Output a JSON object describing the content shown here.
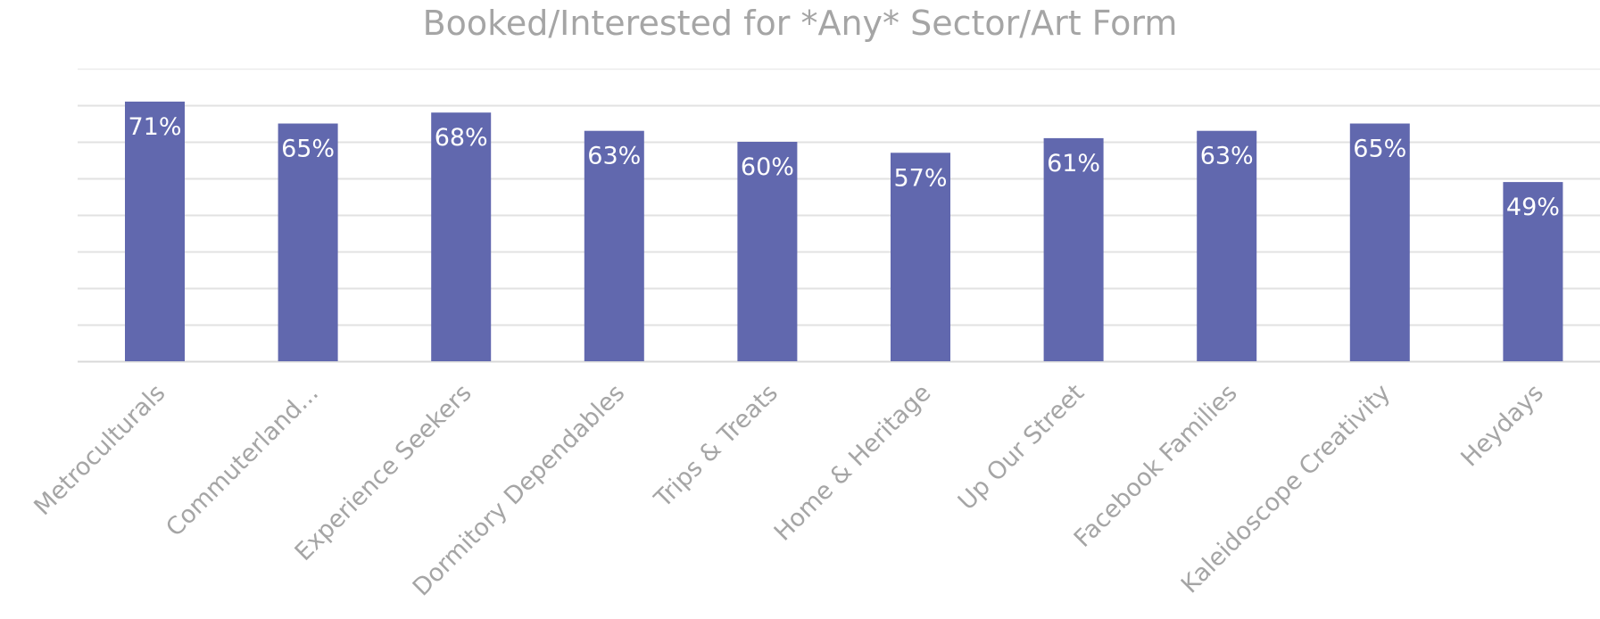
{
  "chart_data": {
    "type": "bar",
    "title": "Booked/Interested for *Any* Sector/Art Form",
    "xlabel": "",
    "ylabel": "",
    "categories": [
      "Metroculturals",
      "Commuterland...",
      "Experience Seekers",
      "Dormitory Dependables",
      "Trips & Treats",
      "Home & Heritage",
      "Up Our Street",
      "Facebook Families",
      "Kaleidoscope Creativity",
      "Heydays"
    ],
    "values": [
      71,
      65,
      68,
      63,
      60,
      57,
      61,
      63,
      65,
      49
    ],
    "data_labels": [
      "71%",
      "65%",
      "68%",
      "63%",
      "60%",
      "57%",
      "61%",
      "63%",
      "65%",
      "49%"
    ],
    "ylim": [
      0,
      80
    ],
    "gridlines": true,
    "legend": "none",
    "bar_color": "#6168ae",
    "label_color": "#ffffff",
    "axis_text_color": "#a5a5a5"
  }
}
